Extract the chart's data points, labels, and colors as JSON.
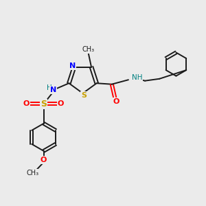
{
  "bg_color": "#ebebeb",
  "bond_color": "#1a1a1a",
  "N_color": "#0000ff",
  "S_color": "#c8a000",
  "O_color": "#ff0000",
  "teal_color": "#008080",
  "figsize": [
    3.0,
    3.0
  ],
  "dpi": 100,
  "xlim": [
    0,
    10
  ],
  "ylim": [
    0,
    10
  ]
}
